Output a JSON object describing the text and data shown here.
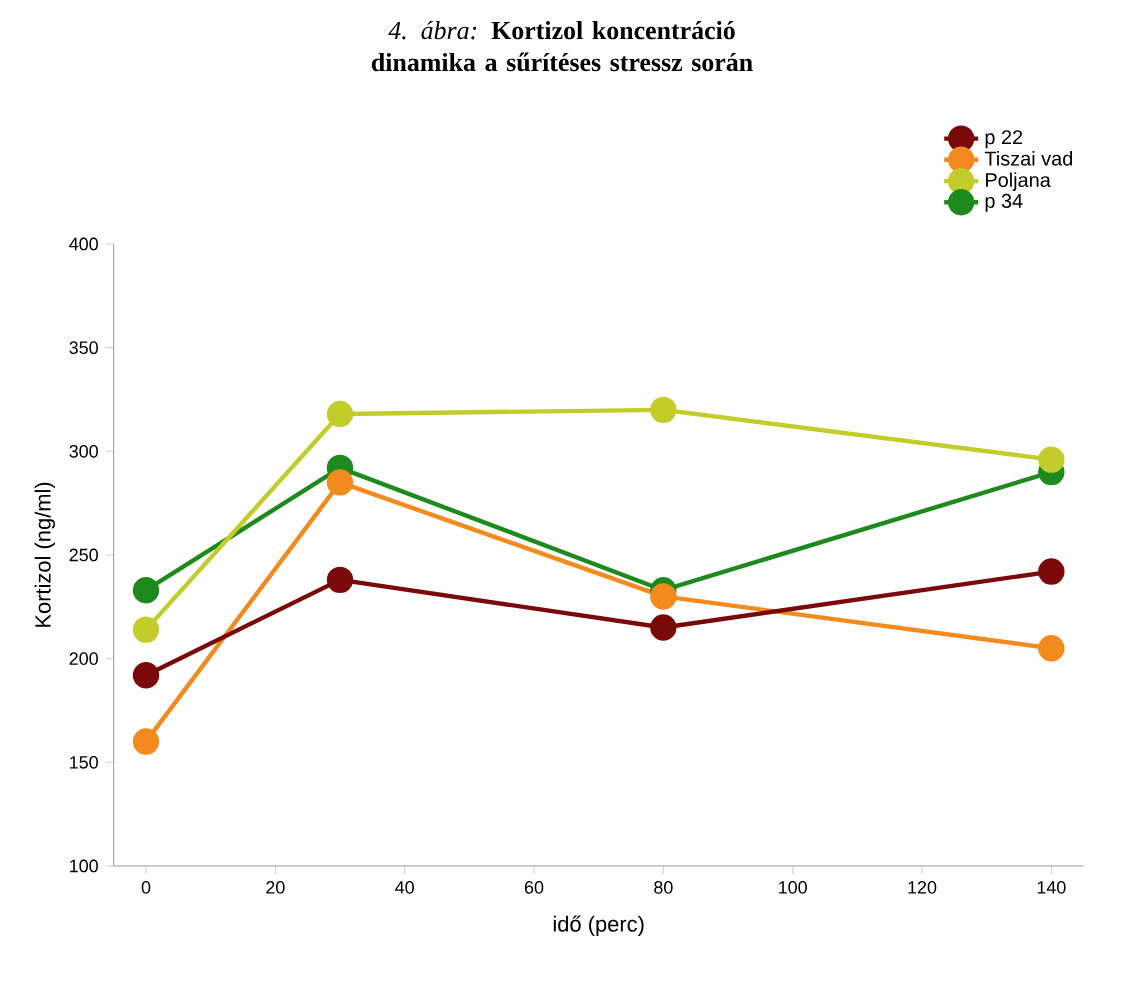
{
  "chart_data": {
    "type": "line",
    "title": "*4. ábra:* **Kortizol koncentráció dinamika a sűrítéses stressz során**",
    "xlabel": "idő (perc)",
    "ylabel": "Kortizol (ng/ml)",
    "x": [
      0,
      30,
      80,
      140
    ],
    "series": [
      {
        "name": "p 22",
        "color": "#7a0a0a",
        "values": [
          192,
          238,
          215,
          242
        ]
      },
      {
        "name": "Tiszai vad",
        "color": "#f28a1e",
        "values": [
          160,
          285,
          230,
          205
        ]
      },
      {
        "name": "Poljana",
        "color": "#c3cc2a",
        "values": [
          214,
          318,
          320,
          296
        ]
      },
      {
        "name": "p 34",
        "color": "#1e8a1e",
        "values": [
          233,
          292,
          233,
          290
        ]
      }
    ],
    "xlim": [
      -5,
      145
    ],
    "xticks": [
      0,
      20,
      40,
      60,
      80,
      100,
      120,
      140
    ],
    "ylim": [
      100,
      400
    ],
    "yticks": [
      100,
      150,
      200,
      250,
      300,
      350,
      400
    ],
    "grid": false,
    "legend": "top right",
    "marker": "circle",
    "line_style": "solid"
  }
}
